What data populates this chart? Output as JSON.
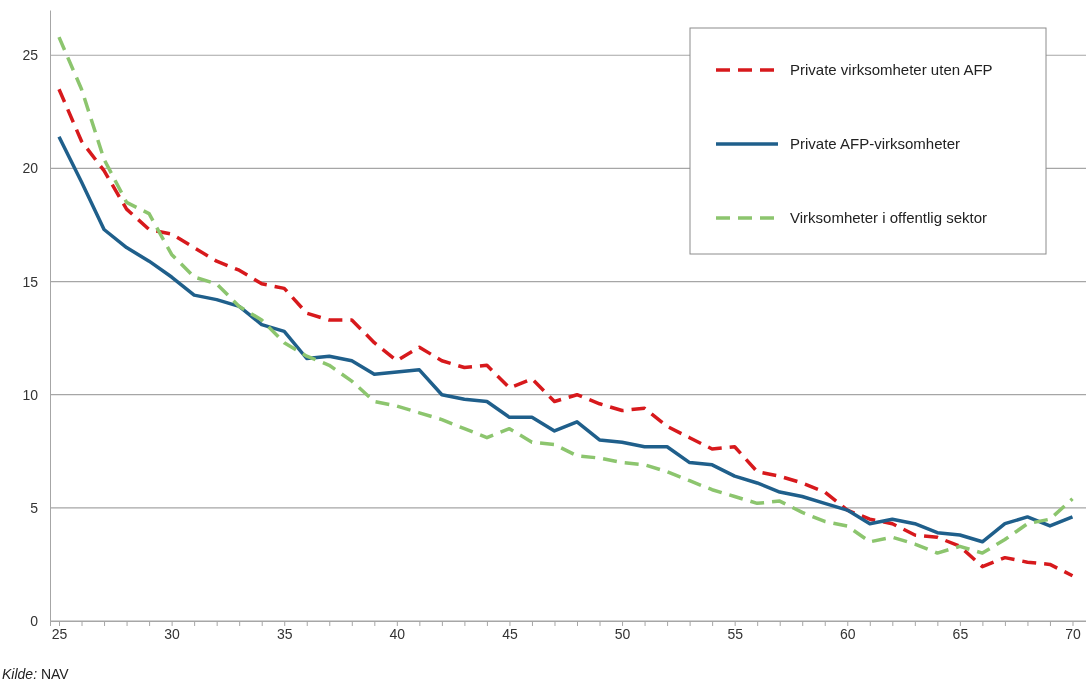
{
  "chart_data": {
    "type": "line",
    "x": [
      25,
      26,
      27,
      28,
      29,
      30,
      31,
      32,
      33,
      34,
      35,
      36,
      37,
      38,
      39,
      40,
      41,
      42,
      43,
      44,
      45,
      46,
      47,
      48,
      49,
      50,
      51,
      52,
      53,
      54,
      55,
      56,
      57,
      58,
      59,
      60,
      61,
      62,
      63,
      64,
      65,
      66,
      67,
      68,
      69,
      70
    ],
    "series": [
      {
        "name": "Private virksomheter uten AFP",
        "color": "#d7191c",
        "line_style": "dashed",
        "values": [
          23.5,
          21.2,
          19.9,
          18.2,
          17.3,
          17.1,
          16.5,
          15.9,
          15.5,
          14.9,
          14.7,
          13.6,
          13.3,
          13.3,
          12.3,
          11.5,
          12.1,
          11.5,
          11.2,
          11.3,
          10.3,
          10.7,
          9.7,
          10.0,
          9.6,
          9.3,
          9.4,
          8.6,
          8.1,
          7.6,
          7.7,
          6.6,
          6.4,
          6.1,
          5.7,
          4.9,
          4.5,
          4.3,
          3.8,
          3.7,
          3.3,
          2.4,
          2.8,
          2.6,
          2.5,
          2.0
        ]
      },
      {
        "name": "Private AFP-virksomheter",
        "color": "#1f5f8b",
        "line_style": "solid",
        "values": [
          21.4,
          19.4,
          17.3,
          16.5,
          15.9,
          15.2,
          14.4,
          14.2,
          13.9,
          13.1,
          12.8,
          11.6,
          11.7,
          11.5,
          10.9,
          11.0,
          11.1,
          10.0,
          9.8,
          9.7,
          9.0,
          9.0,
          8.4,
          8.8,
          8.0,
          7.9,
          7.7,
          7.7,
          7.0,
          6.9,
          6.4,
          6.1,
          5.7,
          5.5,
          5.2,
          4.9,
          4.3,
          4.5,
          4.3,
          3.9,
          3.8,
          3.5,
          4.3,
          4.6,
          4.2,
          4.6
        ]
      },
      {
        "name": "Virksomheter i offentlig sektor",
        "color": "#8cc56e",
        "line_style": "dashed",
        "values": [
          25.8,
          23.5,
          20.4,
          18.5,
          18.0,
          16.2,
          15.2,
          14.9,
          13.9,
          13.3,
          12.3,
          11.7,
          11.3,
          10.6,
          9.7,
          9.5,
          9.2,
          8.9,
          8.5,
          8.1,
          8.5,
          7.9,
          7.8,
          7.3,
          7.2,
          7.0,
          6.9,
          6.6,
          6.2,
          5.8,
          5.5,
          5.2,
          5.3,
          4.8,
          4.4,
          4.2,
          3.5,
          3.7,
          3.4,
          3.0,
          3.3,
          3.0,
          3.6,
          4.3,
          4.5,
          5.4
        ]
      }
    ],
    "xlim": [
      24.6,
      70.6
    ],
    "xticks": [
      25,
      {
        "value": 26,
        "label": null
      },
      {
        "value": 27,
        "label": null
      },
      {
        "value": 28,
        "label": null
      },
      {
        "value": 29,
        "label": null
      },
      30,
      {
        "value": 31,
        "label": null
      },
      {
        "value": 32,
        "label": null
      },
      {
        "value": 33,
        "label": null
      },
      {
        "value": 34,
        "label": null
      },
      35,
      {
        "value": 36,
        "label": null
      },
      {
        "value": 37,
        "label": null
      },
      {
        "value": 38,
        "label": null
      },
      {
        "value": 39,
        "label": null
      },
      40,
      {
        "value": 41,
        "label": null
      },
      {
        "value": 42,
        "label": null
      },
      {
        "value": 43,
        "label": null
      },
      {
        "value": 44,
        "label": null
      },
      45,
      {
        "value": 46,
        "label": null
      },
      {
        "value": 47,
        "label": null
      },
      {
        "value": 48,
        "label": null
      },
      {
        "value": 49,
        "label": null
      },
      50,
      {
        "value": 51,
        "label": null
      },
      {
        "value": 52,
        "label": null
      },
      {
        "value": 53,
        "label": null
      },
      {
        "value": 54,
        "label": null
      },
      55,
      {
        "value": 56,
        "label": null
      },
      {
        "value": 57,
        "label": null
      },
      {
        "value": 58,
        "label": null
      },
      {
        "value": 59,
        "label": null
      },
      60,
      {
        "value": 61,
        "label": null
      },
      {
        "value": 62,
        "label": null
      },
      {
        "value": 63,
        "label": null
      },
      {
        "value": 64,
        "label": null
      },
      65,
      {
        "value": 66,
        "label": null
      },
      {
        "value": 67,
        "label": null
      },
      {
        "value": 68,
        "label": null
      },
      {
        "value": 69,
        "label": null
      },
      70
    ],
    "ylim": [
      0,
      27
    ],
    "yticks": [
      0,
      5,
      10,
      15,
      20,
      25
    ],
    "grid": "y",
    "legend": "top right",
    "annotations": [
      "Kilde: NAV"
    ]
  }
}
